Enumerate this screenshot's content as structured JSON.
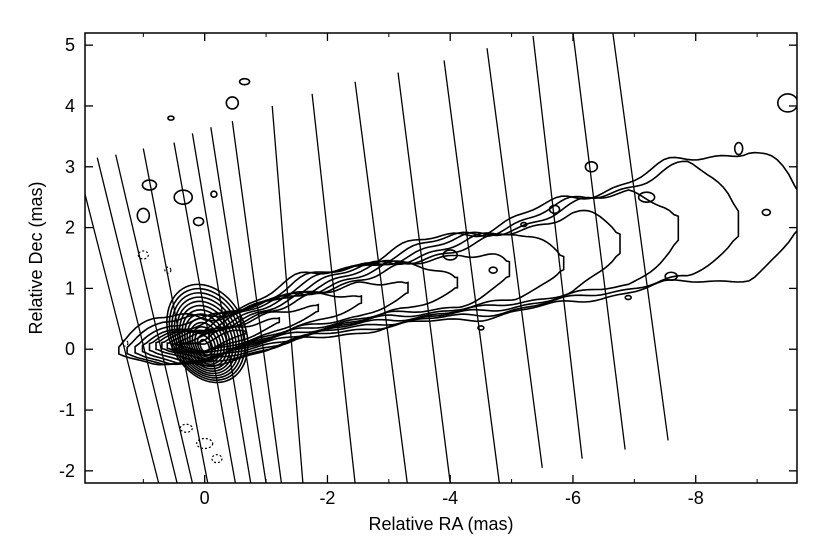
{
  "chart_data": {
    "type": "contour",
    "xlabel": "Relative RA (mas)",
    "ylabel": "Relative Dec (mas)",
    "xlim": [
      1.95,
      -9.65
    ],
    "ylim": [
      -2.2,
      5.2
    ],
    "xticks": [
      {
        "value": 0,
        "label": "0"
      },
      {
        "value": -2,
        "label": "-2"
      },
      {
        "value": -4,
        "label": "-4"
      },
      {
        "value": -6,
        "label": "-6"
      },
      {
        "value": -8,
        "label": "-8"
      }
    ],
    "yticks": [
      {
        "value": -2,
        "label": "-2"
      },
      {
        "value": -1,
        "label": "-1"
      },
      {
        "value": 0,
        "label": "0"
      },
      {
        "value": 1,
        "label": "1"
      },
      {
        "value": 2,
        "label": "2"
      },
      {
        "value": 3,
        "label": "3"
      },
      {
        "value": 4,
        "label": "4"
      },
      {
        "value": 5,
        "label": "5"
      }
    ],
    "core": {
      "ra": 0.0,
      "dec": 0.05
    },
    "jet_ridge": [
      {
        "ra": 0.0,
        "dec": 0.05
      },
      {
        "ra": -1.5,
        "dec": 0.55
      },
      {
        "ra": -3.0,
        "dec": 0.9
      },
      {
        "ra": -4.5,
        "dec": 1.15
      },
      {
        "ra": -6.0,
        "dec": 1.5
      },
      {
        "ra": -7.5,
        "dec": 1.9
      },
      {
        "ra": -9.6,
        "dec": 2.2
      }
    ],
    "slice_lines": [
      {
        "dec_top": 2.55,
        "ra_top": 1.95,
        "ra_bottom": 0.75,
        "dec_bottom": -2.2
      },
      {
        "dec_top": 3.15,
        "ra_top": 1.75,
        "ra_bottom": 0.45,
        "dec_bottom": -2.2
      },
      {
        "dec_top": 3.2,
        "ra_top": 1.45,
        "ra_bottom": 0.2,
        "dec_bottom": -2.2
      },
      {
        "dec_top": 3.3,
        "ra_top": 1.0,
        "ra_bottom": -0.05,
        "dec_bottom": -2.2
      },
      {
        "dec_top": 3.4,
        "ra_top": 0.5,
        "ra_bottom": -0.5,
        "dec_bottom": -2.2
      },
      {
        "dec_top": 3.55,
        "ra_top": 0.2,
        "ra_bottom": -0.75,
        "dec_bottom": -2.2
      },
      {
        "dec_top": 3.65,
        "ra_top": -0.1,
        "ra_bottom": -1.0,
        "dec_bottom": -2.2
      },
      {
        "dec_top": 3.75,
        "ra_top": -0.45,
        "ra_bottom": -1.25,
        "dec_bottom": -2.2
      },
      {
        "dec_top": 4.0,
        "ra_top": -1.1,
        "ra_bottom": -1.6,
        "dec_bottom": -2.2
      },
      {
        "dec_top": 4.2,
        "ra_top": -1.75,
        "ra_bottom": -2.45,
        "dec_bottom": -2.2
      },
      {
        "dec_top": 4.4,
        "ra_top": -2.45,
        "ra_bottom": -3.3,
        "dec_bottom": -2.2
      },
      {
        "dec_top": 4.55,
        "ra_top": -3.15,
        "ra_bottom": -4.0,
        "dec_bottom": -2.2
      },
      {
        "dec_top": 4.75,
        "ra_top": -3.9,
        "ra_bottom": -4.8,
        "dec_bottom": -2.2
      },
      {
        "dec_top": 4.95,
        "ra_top": -4.6,
        "ra_bottom": -5.5,
        "dec_bottom": -1.95
      },
      {
        "dec_top": 5.15,
        "ra_top": -5.35,
        "ra_bottom": -6.15,
        "dec_bottom": -1.8
      },
      {
        "dec_top": 5.2,
        "ra_top": -6.0,
        "ra_bottom": -6.85,
        "dec_bottom": -1.65
      },
      {
        "dec_top": 5.2,
        "ra_top": -6.65,
        "ra_bottom": -7.55,
        "dec_bottom": -1.5
      }
    ],
    "grid": false,
    "legend": "none"
  }
}
